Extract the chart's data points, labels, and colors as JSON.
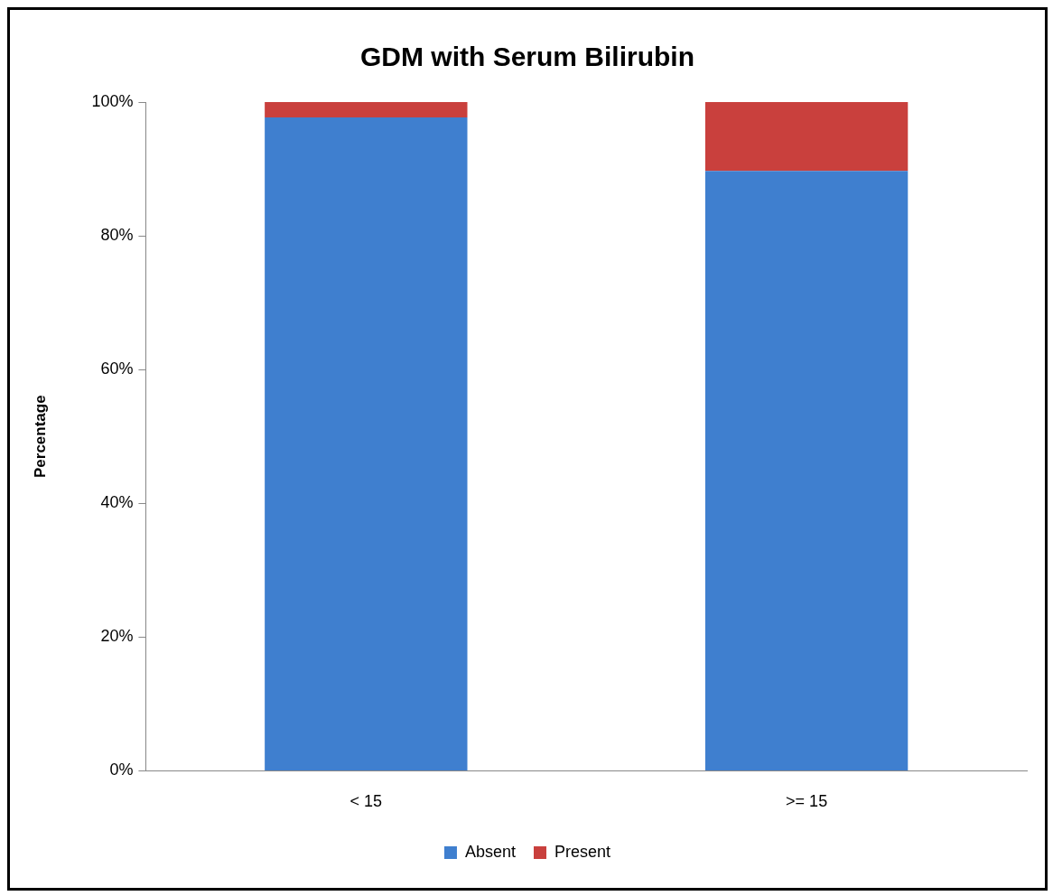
{
  "chart_data": {
    "type": "bar",
    "title": "GDM with Serum Bilirubin",
    "ylabel": "Percentage",
    "categories": [
      "< 15",
      ">= 15"
    ],
    "stacked": true,
    "series": [
      {
        "name": "Absent",
        "color": "#3f7fcf",
        "values": [
          97.7,
          89.7
        ]
      },
      {
        "name": "Present",
        "color": "#c9403d",
        "values": [
          2.3,
          10.3
        ]
      }
    ],
    "ylim": [
      0,
      100
    ],
    "yticks": [
      {
        "value": 0,
        "label": "0%"
      },
      {
        "value": 20,
        "label": "20%"
      },
      {
        "value": 40,
        "label": "40%"
      },
      {
        "value": 60,
        "label": "60%"
      },
      {
        "value": 80,
        "label": "80%"
      },
      {
        "value": 100,
        "label": "100%"
      }
    ],
    "grid": false,
    "legend": "bottom"
  }
}
